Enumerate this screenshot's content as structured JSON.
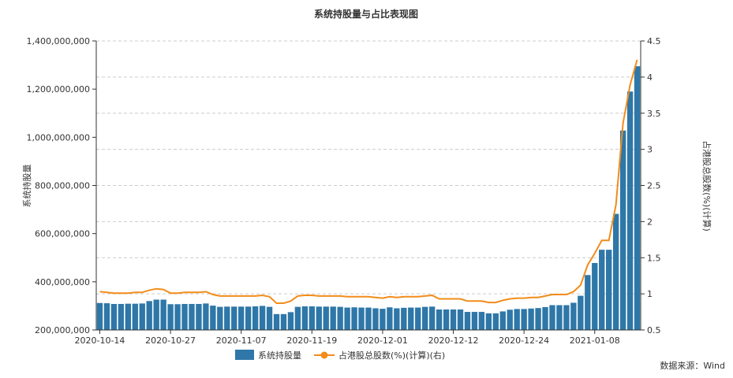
{
  "chart_data": {
    "type": "bar",
    "title": "系统持股量与占比表现图",
    "xlabel": "",
    "ylabel": "系统持股量",
    "y2label": "占港股总股数(%)(计算)",
    "ylim": [
      200000000,
      1400000000
    ],
    "y2lim": [
      0.5,
      4.5
    ],
    "y_ticks": [
      "200,000,000",
      "400,000,000",
      "600,000,000",
      "800,000,000",
      "1,000,000,000",
      "1,200,000,000",
      "1,400,000,000"
    ],
    "y2_ticks": [
      "0.5",
      "1",
      "1.5",
      "2",
      "2.5",
      "3",
      "3.5",
      "4",
      "4.5"
    ],
    "x_tick_labels": [
      "2020-10-14",
      "2020-10-27",
      "2020-11-07",
      "2020-11-19",
      "2020-12-01",
      "2020-12-12",
      "2020-12-24",
      "2021-01-08"
    ],
    "x_tick_index": [
      0,
      10,
      20,
      30,
      40,
      50,
      60,
      70
    ],
    "grid": true,
    "legend_position": "bottom",
    "series": [
      {
        "name": "系统持股量",
        "type": "bar",
        "axis": "left",
        "color": "#2e77a8",
        "values": [
          312000000,
          311000000,
          308000000,
          308000000,
          309000000,
          309000000,
          310000000,
          320000000,
          326000000,
          326000000,
          307000000,
          307000000,
          308000000,
          308000000,
          308000000,
          310000000,
          301000000,
          296000000,
          297000000,
          297000000,
          297000000,
          297000000,
          298000000,
          300000000,
          296000000,
          266000000,
          266000000,
          274000000,
          296000000,
          298000000,
          298000000,
          297000000,
          297000000,
          297000000,
          296000000,
          293000000,
          294000000,
          293000000,
          293000000,
          290000000,
          288000000,
          294000000,
          290000000,
          292000000,
          293000000,
          293000000,
          296000000,
          297000000,
          285000000,
          285000000,
          285000000,
          285000000,
          275000000,
          275000000,
          275000000,
          269000000,
          269000000,
          277000000,
          284000000,
          287000000,
          287000000,
          289000000,
          291000000,
          295000000,
          303000000,
          303000000,
          303000000,
          313000000,
          342000000,
          428000000,
          478000000,
          533000000,
          533000000,
          682000000,
          1028000000,
          1190000000,
          1295000000
        ]
      },
      {
        "name": "占港股总股数(%)(计算)(右)",
        "type": "line",
        "axis": "right",
        "color": "#f28c1a",
        "values": [
          1.03,
          1.02,
          1.01,
          1.01,
          1.01,
          1.02,
          1.02,
          1.05,
          1.07,
          1.06,
          1.01,
          1.01,
          1.02,
          1.02,
          1.02,
          1.03,
          0.99,
          0.97,
          0.97,
          0.97,
          0.97,
          0.97,
          0.97,
          0.98,
          0.96,
          0.87,
          0.87,
          0.9,
          0.97,
          0.98,
          0.98,
          0.97,
          0.97,
          0.97,
          0.97,
          0.96,
          0.96,
          0.96,
          0.96,
          0.95,
          0.94,
          0.96,
          0.95,
          0.96,
          0.96,
          0.96,
          0.97,
          0.98,
          0.93,
          0.93,
          0.93,
          0.93,
          0.9,
          0.9,
          0.9,
          0.88,
          0.88,
          0.91,
          0.93,
          0.94,
          0.94,
          0.95,
          0.95,
          0.97,
          0.99,
          0.99,
          0.99,
          1.03,
          1.12,
          1.4,
          1.56,
          1.74,
          1.74,
          2.23,
          3.36,
          3.89,
          4.24
        ]
      }
    ]
  },
  "legend": {
    "bar_label": "系统持股量",
    "line_label": "占港股总股数(%)(计算)(右)"
  },
  "source": "数据来源：Wind",
  "colors": {
    "bar": "#2e77a8",
    "line": "#f28c1a",
    "grid": "#cccccc",
    "axis": "#333333"
  }
}
